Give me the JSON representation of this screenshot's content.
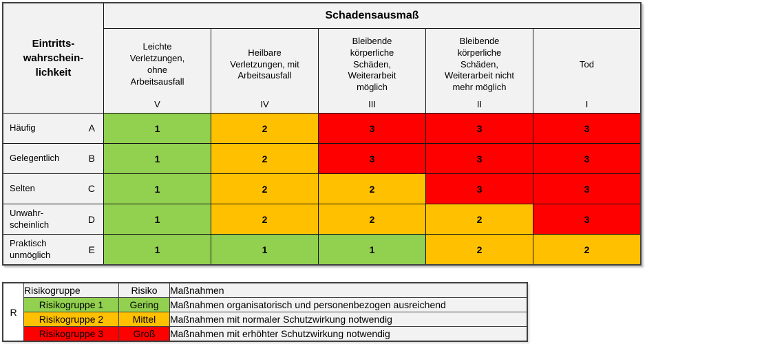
{
  "matrix": {
    "corner_label": "Eintritts-\nwahrschein-\nlichkeit",
    "top_header": "Schadensausmaß",
    "columns": [
      {
        "label": "Leichte\nVerletzungen,\nohne\nArbeitsausfall",
        "numeral": "V"
      },
      {
        "label": "Heilbare\nVerletzungen, mit\nArbeitsausfall",
        "numeral": "IV"
      },
      {
        "label": "Bleibende\nkörperliche\nSchäden,\nWeiterarbeit\nmöglich",
        "numeral": "III"
      },
      {
        "label": "Bleibende\nkörperliche\nSchäden,\nWeiterarbeit nicht\nmehr möglich",
        "numeral": "II"
      },
      {
        "label": "Tod",
        "numeral": "I"
      }
    ],
    "rows": [
      {
        "label": "Häufig",
        "letter": "A",
        "values": [
          1,
          2,
          3,
          3,
          3
        ]
      },
      {
        "label": "Gelegentlich",
        "letter": "B",
        "values": [
          1,
          2,
          3,
          3,
          3
        ]
      },
      {
        "label": "Selten",
        "letter": "C",
        "values": [
          1,
          2,
          2,
          3,
          3
        ]
      },
      {
        "label": "Unwahr-\nscheinlich",
        "letter": "D",
        "values": [
          1,
          2,
          2,
          2,
          3
        ]
      },
      {
        "label": "Praktisch\nunmöglich",
        "letter": "E",
        "values": [
          1,
          1,
          1,
          2,
          2
        ]
      }
    ]
  },
  "legend": {
    "header": {
      "r": "R",
      "group": "Risikogruppe",
      "risk": "Risiko",
      "measures": "Maßnahmen"
    },
    "rows": [
      {
        "group": "Risikogruppe 1",
        "risk": "Gering",
        "measures": "Maßnahmen organisatorisch und personenbezogen ausreichend",
        "level": 1
      },
      {
        "group": "Risikogruppe 2",
        "risk": "Mittel",
        "measures": "Maßnahmen mit normaler Schutzwirkung notwendig",
        "level": 2
      },
      {
        "group": "Risikogruppe 3",
        "risk": "Groß",
        "measures": "Maßnahmen mit erhöhter Schutzwirkung notwendig",
        "level": 3
      }
    ]
  },
  "colors": {
    "risk1": "#92d050",
    "risk2": "#ffc000",
    "risk3": "#ff0000",
    "header_bg": "#f2f2f2",
    "border": "#3f3f3f"
  }
}
